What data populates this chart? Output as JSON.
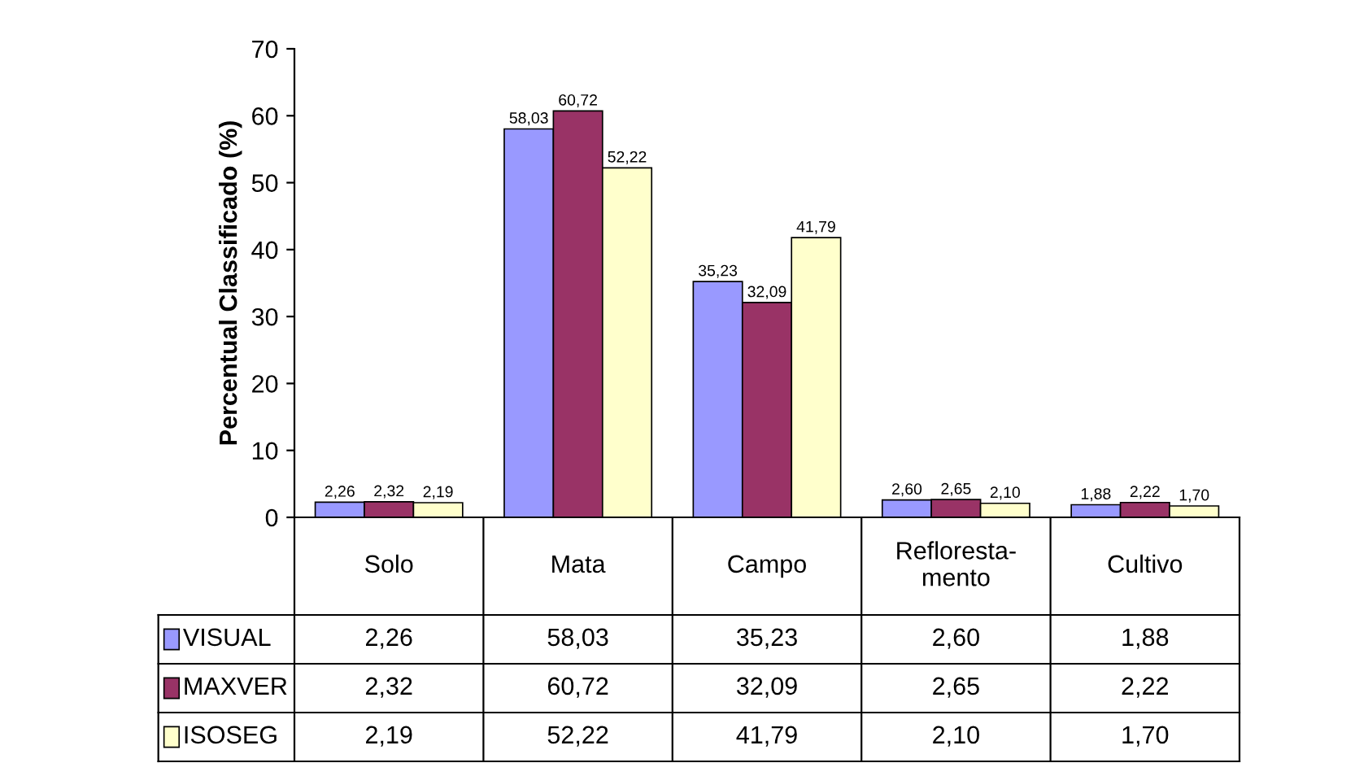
{
  "chart_data": {
    "type": "bar",
    "ylabel": "Percentual Classificado (%)",
    "categories": [
      "Solo",
      "Mata",
      "Campo",
      "Refloresta-\nmento",
      "Cultivo"
    ],
    "series": [
      {
        "name": "VISUAL",
        "color": "#9999ff",
        "values": [
          2.26,
          58.03,
          35.23,
          2.6,
          1.88
        ],
        "value_labels": [
          "2,26",
          "58,03",
          "35,23",
          "2,60",
          "1,88"
        ]
      },
      {
        "name": "MAXVER",
        "color": "#993366",
        "values": [
          2.32,
          60.72,
          32.09,
          2.65,
          2.22
        ],
        "value_labels": [
          "2,32",
          "60,72",
          "32,09",
          "2,65",
          "2,22"
        ]
      },
      {
        "name": "ISOSEG",
        "color": "#ffffcc",
        "values": [
          2.19,
          52.22,
          41.79,
          2.1,
          1.7
        ],
        "value_labels": [
          "2,19",
          "52,22",
          "41,79",
          "2,10",
          "1,70"
        ]
      }
    ],
    "ylim": [
      0,
      70
    ],
    "yticks": [
      0,
      10,
      20,
      30,
      40,
      50,
      60,
      70
    ],
    "grid": false,
    "legend": "bottom left"
  }
}
